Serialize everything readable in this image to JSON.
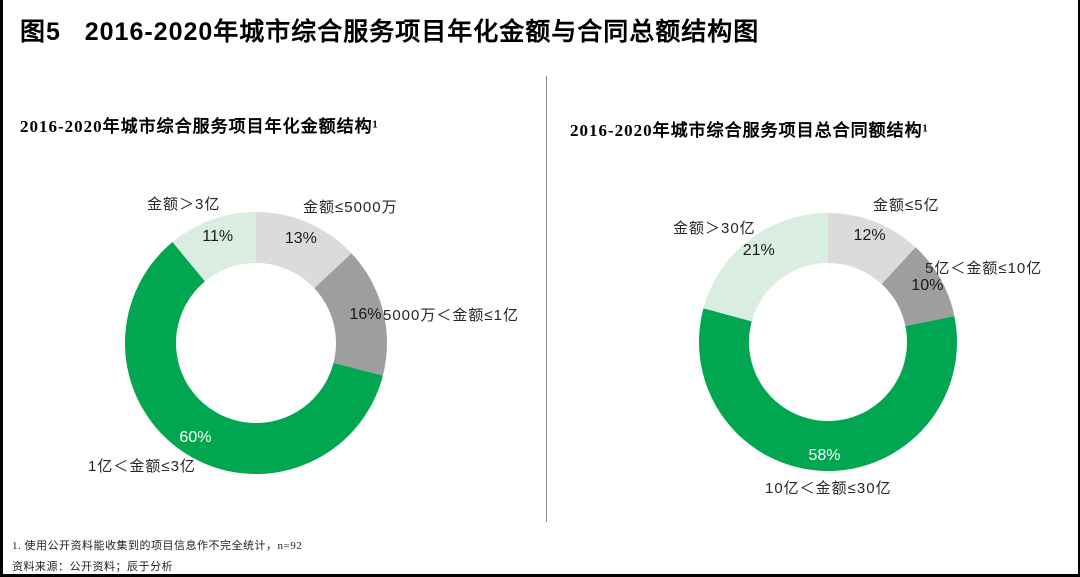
{
  "page": {
    "title": "图5   2016-2020年城市综合服务项目年化金额与合同总额结构图",
    "footnote1": "1. 使用公开资料能收集到的项目信息作不完全统计，n=92",
    "source": "资料来源：公开资料；辰于分析"
  },
  "colors": {
    "green": "#00A650",
    "pale_green": "#D9EDE1",
    "light_gray": "#DBDBDB",
    "dark_gray": "#9E9E9E",
    "divider_gray": "#8A8A8A"
  },
  "chart_data": [
    {
      "type": "pie",
      "donut": true,
      "title": "2016-2020年城市综合服务项目年化金额结构¹",
      "start_angle_deg": 0,
      "direction": "clockwise",
      "legend_position": "callout-labels",
      "slices": [
        {
          "label": "金额≤5000万",
          "value": 13,
          "pct_label": "13%",
          "color": "#DBDBDB",
          "pct_color": "#1a1a1a"
        },
        {
          "label": "5000万＜金额≤1亿",
          "value": 16,
          "pct_label": "16%",
          "color": "#9E9E9E",
          "pct_color": "#1a1a1a"
        },
        {
          "label": "1亿＜金额≤3亿",
          "value": 60,
          "pct_label": "60%",
          "color": "#00A650",
          "pct_color": "#ffffff"
        },
        {
          "label": "金额＞3亿",
          "value": 11,
          "pct_label": "11%",
          "color": "#D9EDE1",
          "pct_color": "#1a1a1a"
        }
      ]
    },
    {
      "type": "pie",
      "donut": true,
      "title": "2016-2020年城市综合服务项目总合同额结构¹",
      "start_angle_deg": 0,
      "direction": "clockwise",
      "legend_position": "callout-labels",
      "slices": [
        {
          "label": "金额≤5亿",
          "value": 12,
          "pct_label": "12%",
          "color": "#DBDBDB",
          "pct_color": "#1a1a1a"
        },
        {
          "label": "5亿＜金额≤10亿",
          "value": 10,
          "pct_label": "10%",
          "color": "#9E9E9E",
          "pct_color": "#1a1a1a"
        },
        {
          "label": "10亿＜金额≤30亿",
          "value": 58,
          "pct_label": "58%",
          "color": "#00A650",
          "pct_color": "#ffffff"
        },
        {
          "label": "金额＞30亿",
          "value": 21,
          "pct_label": "21%",
          "color": "#D9EDE1",
          "pct_color": "#1a1a1a"
        }
      ]
    }
  ]
}
